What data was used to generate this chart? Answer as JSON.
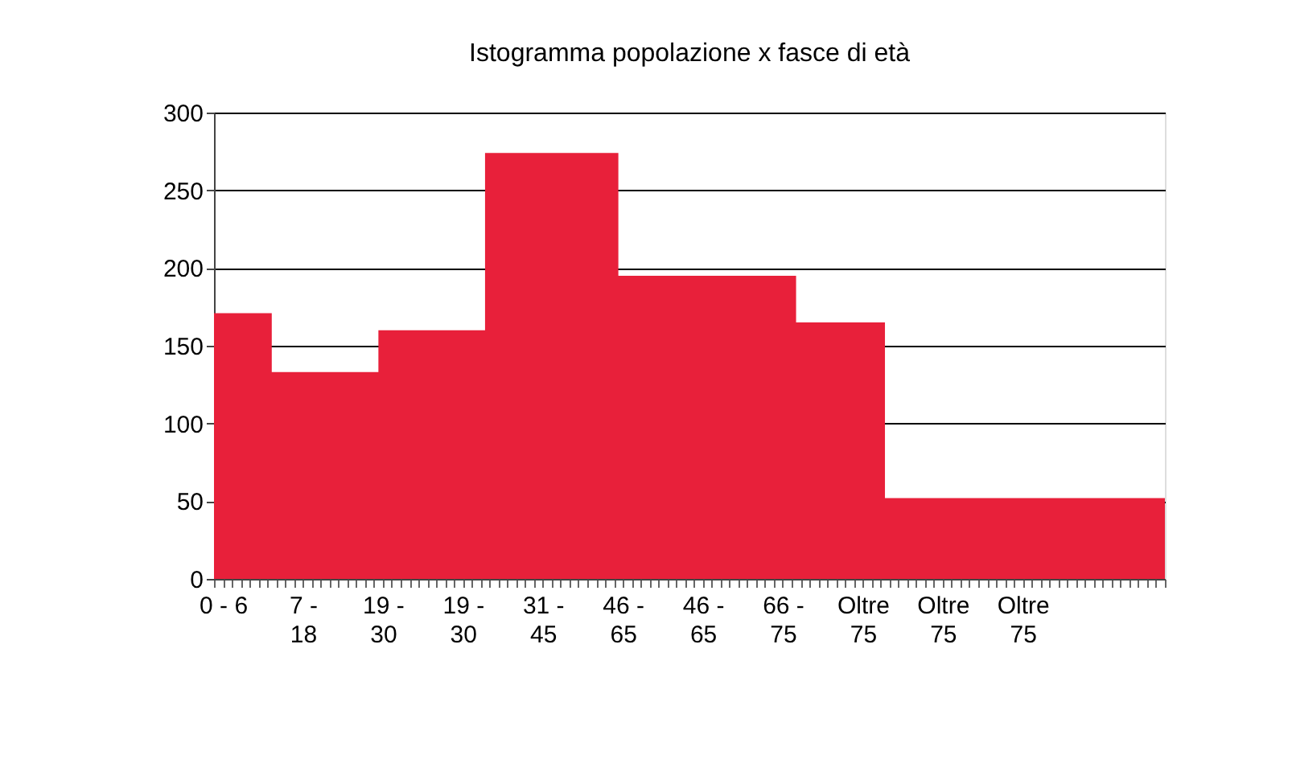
{
  "chart_data": {
    "type": "area",
    "title": "Istogramma popolazione x fasce di età",
    "categories": [
      null,
      "0 - 6",
      null,
      null,
      null,
      null,
      null,
      null,
      null,
      null,
      "7 - 18",
      null,
      null,
      null,
      null,
      null,
      null,
      null,
      null,
      "19 - 30",
      null,
      null,
      null,
      null,
      null,
      null,
      null,
      null,
      "19 - 30",
      null,
      null,
      null,
      null,
      null,
      null,
      null,
      null,
      "31 - 45",
      null,
      null,
      null,
      null,
      null,
      null,
      null,
      null,
      "46 - 65",
      null,
      null,
      null,
      null,
      null,
      null,
      null,
      null,
      "46 - 65",
      null,
      null,
      null,
      null,
      null,
      null,
      null,
      null,
      "66 - 75",
      null,
      null,
      null,
      null,
      null,
      null,
      null,
      null,
      "Oltre 75",
      null,
      null,
      null,
      null,
      null,
      null,
      null,
      null,
      "Oltre 75",
      null,
      null,
      null,
      null,
      null,
      null,
      null,
      null,
      "Oltre 75",
      null,
      null,
      null,
      null,
      null,
      null,
      null,
      null,
      null,
      null,
      null,
      null,
      null,
      null,
      null,
      null
    ],
    "values": [
      171,
      171,
      171,
      171,
      171,
      171,
      171,
      133,
      133,
      133,
      133,
      133,
      133,
      133,
      133,
      133,
      133,
      133,
      133,
      160,
      160,
      160,
      160,
      160,
      160,
      160,
      160,
      160,
      160,
      160,
      160,
      274,
      274,
      274,
      274,
      274,
      274,
      274,
      274,
      274,
      274,
      274,
      274,
      274,
      274,
      274,
      195,
      195,
      195,
      195,
      195,
      195,
      195,
      195,
      195,
      195,
      195,
      195,
      195,
      195,
      195,
      195,
      195,
      195,
      195,
      195,
      165,
      165,
      165,
      165,
      165,
      165,
      165,
      165,
      165,
      165,
      52,
      52,
      52,
      52,
      52,
      52,
      52,
      52,
      52,
      52,
      52,
      52,
      52,
      52,
      52,
      52,
      52,
      52,
      52,
      52,
      52,
      52,
      52,
      52,
      52,
      52,
      52,
      52,
      52,
      52,
      52,
      52
    ],
    "color": "#e8203a",
    "ylim": [
      0,
      300
    ],
    "yticks": [
      0,
      50,
      100,
      150,
      200,
      250,
      300
    ],
    "grid": "y"
  }
}
